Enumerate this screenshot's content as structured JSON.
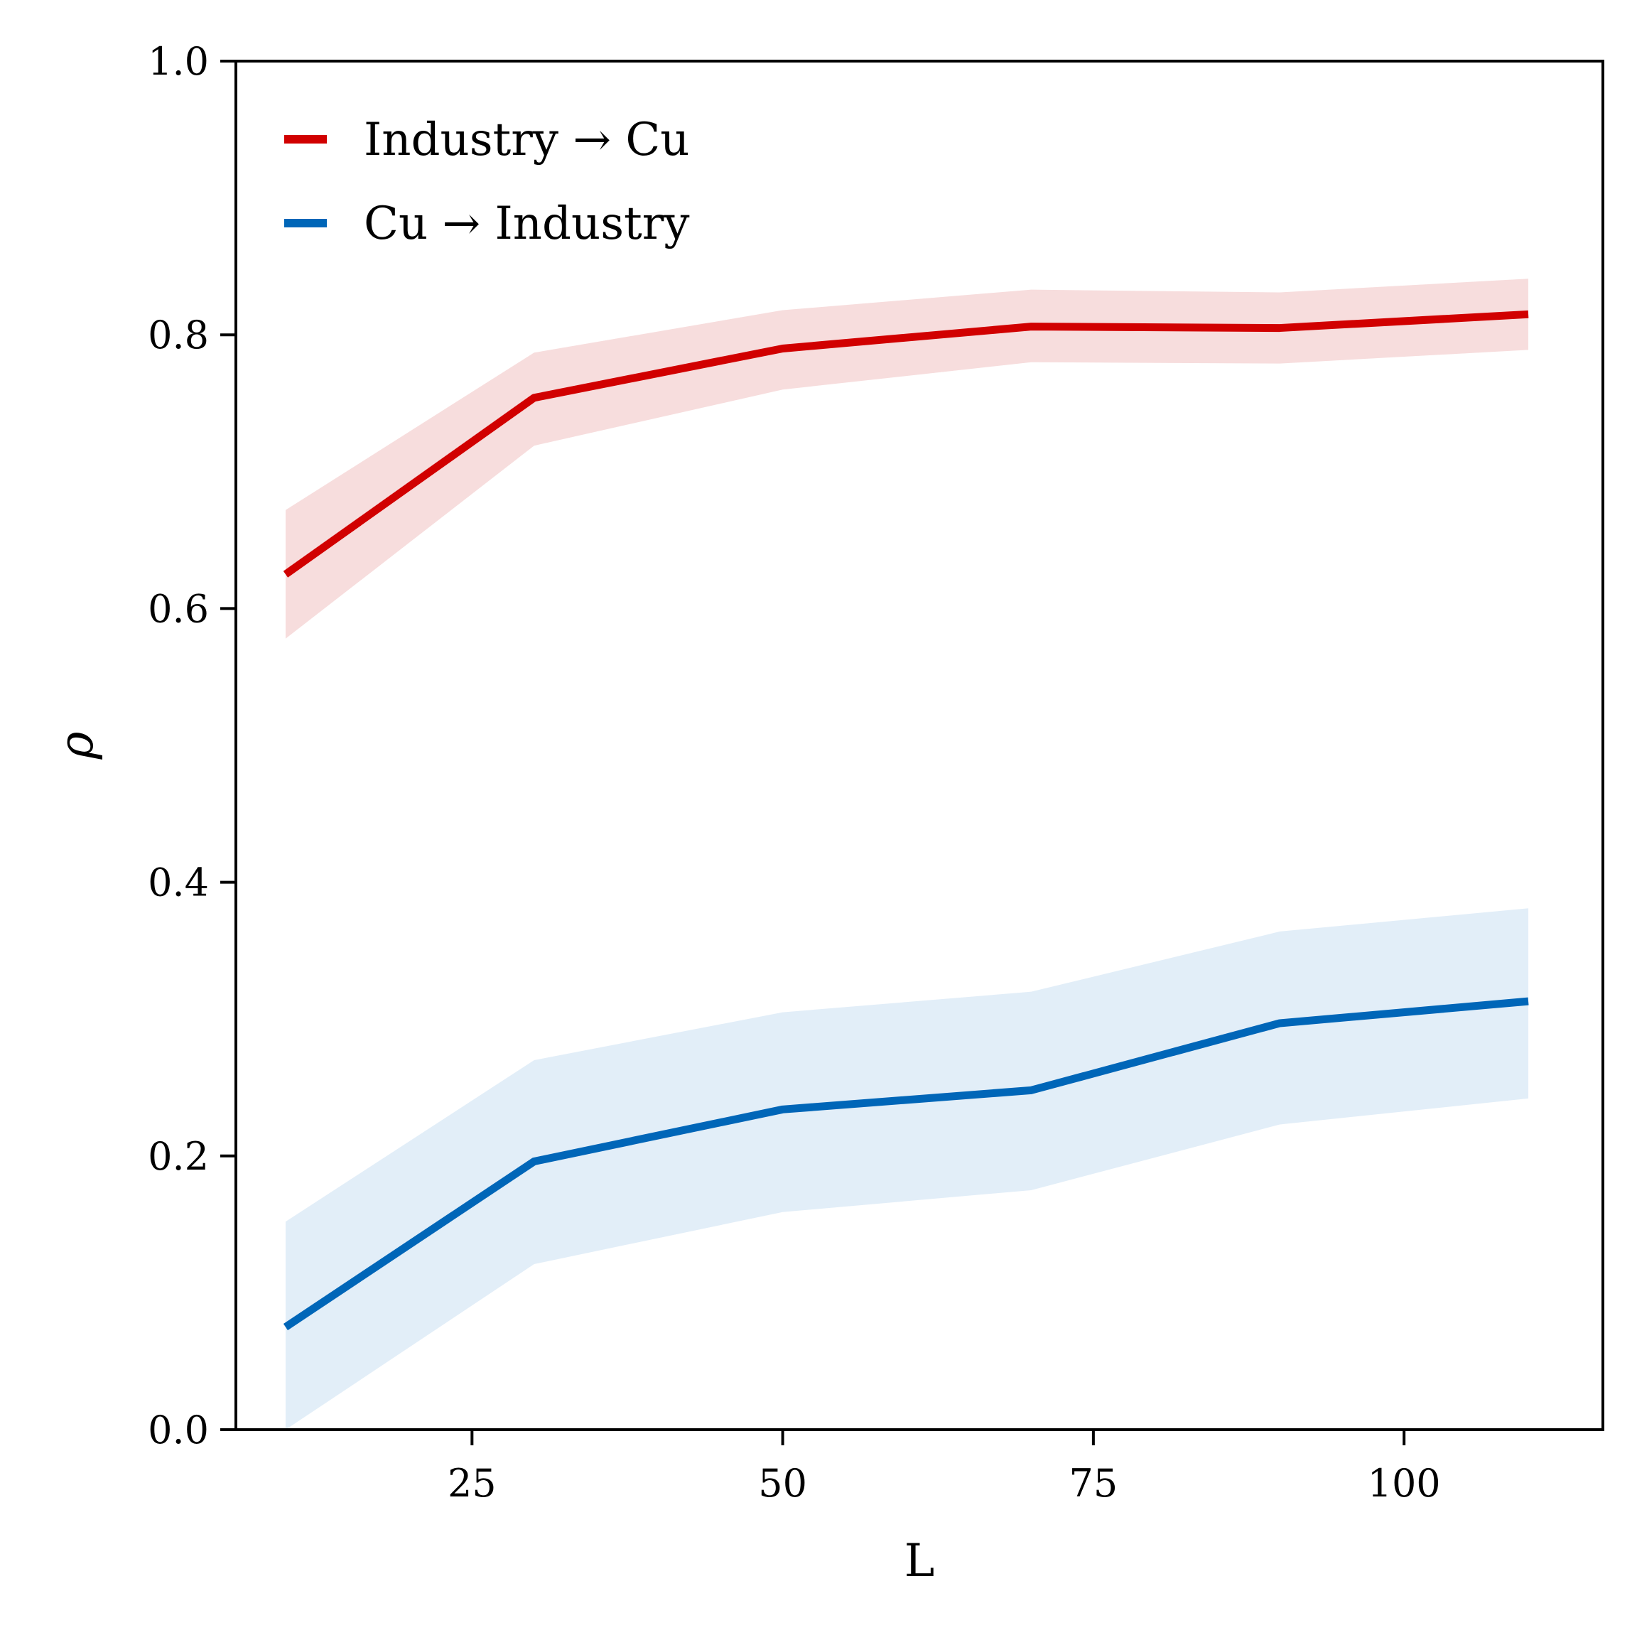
{
  "chart_data": {
    "type": "line",
    "xlabel": "L",
    "ylabel": "ρ",
    "xlim": [
      6,
      116
    ],
    "ylim": [
      0,
      1.0
    ],
    "x_ticks": [
      25,
      50,
      75,
      100
    ],
    "x_tick_labels": [
      "25",
      "50",
      "75",
      "100"
    ],
    "y_ticks": [
      0.0,
      0.2,
      0.4,
      0.6,
      0.8,
      1.0
    ],
    "y_tick_labels": [
      "0.0",
      "0.2",
      "0.4",
      "0.6",
      "0.8",
      "1.0"
    ],
    "grid": false,
    "legend_position": "top-left",
    "x": [
      10,
      30,
      50,
      70,
      90,
      110
    ],
    "series": [
      {
        "name": "Industry → Cu",
        "color": "#d10000",
        "band_color": "#f7dddd",
        "values": [
          0.625,
          0.754,
          0.79,
          0.806,
          0.805,
          0.815
        ],
        "lower": [
          0.578,
          0.719,
          0.76,
          0.78,
          0.779,
          0.789
        ],
        "upper": [
          0.672,
          0.787,
          0.818,
          0.833,
          0.831,
          0.841
        ]
      },
      {
        "name": "Cu → Industry",
        "color": "#0066b8",
        "band_color": "#e2eef8",
        "values": [
          0.075,
          0.196,
          0.234,
          0.248,
          0.297,
          0.313
        ],
        "lower": [
          0.0,
          0.121,
          0.159,
          0.175,
          0.223,
          0.242
        ],
        "upper": [
          0.152,
          0.27,
          0.305,
          0.32,
          0.364,
          0.381
        ]
      }
    ]
  }
}
